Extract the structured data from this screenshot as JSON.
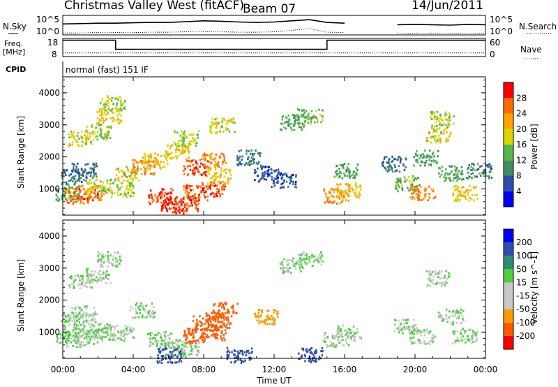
{
  "header": {
    "radar": "Christmas Valley West (fitACF)",
    "beam": "Beam 07",
    "date": "14/Jun/2011"
  },
  "panels": {
    "nsky": {
      "label": "N.Sky",
      "ticks": [
        "10^5",
        "10^0"
      ],
      "right_label": "N.Search",
      "right_ticks": [
        "10^5",
        "10^0"
      ]
    },
    "freq": {
      "label_line1": "Freq.",
      "label_line2": "[MHz]",
      "ticks": [
        "18",
        "8"
      ],
      "right_label": "Nave",
      "right_ticks": [
        "60",
        "0"
      ]
    },
    "cpid": {
      "label": "CPID",
      "value": "normal (fast) 151 IF"
    },
    "power": {
      "ylabel": "Slant Range [km]",
      "yticks": [
        "4000",
        "3000",
        "2000",
        "1000"
      ],
      "colorbar_label": "Power [dB]",
      "colorbar_ticks": [
        "28",
        "24",
        "20",
        "16",
        "12",
        "8",
        "4"
      ]
    },
    "velocity": {
      "ylabel": "Slant Range [km]",
      "yticks": [
        "4000",
        "3000",
        "2000",
        "1000"
      ],
      "colorbar_label": "Velocity [m s^-1]",
      "colorbar_ticks": [
        "200",
        "100",
        "50",
        "15",
        "-15",
        "-50",
        "-100",
        "-200"
      ]
    },
    "xaxis": {
      "label": "Time UT",
      "ticks": [
        "00:00",
        "04:00",
        "08:00",
        "12:00",
        "16:00",
        "20:00",
        "00:00"
      ]
    }
  },
  "chart_data": [
    {
      "type": "line",
      "title": "N.Sky / N.Search",
      "x": [
        0,
        1,
        2,
        3,
        4,
        5,
        6,
        7,
        8,
        9,
        10,
        11,
        12,
        13,
        14,
        15,
        16,
        17,
        18,
        19,
        20,
        21,
        22,
        23,
        24
      ],
      "series": [
        {
          "name": "N.Sky",
          "values": [
            2.8,
            2.9,
            3.0,
            3.0,
            3.1,
            3.2,
            3.2,
            3.4,
            3.6,
            3.5,
            3.3,
            3.2,
            3.3,
            3.6,
            3.9,
            3.2,
            3.0,
            null,
            null,
            2.6,
            2.7,
            2.6,
            2.5,
            2.7,
            2.6
          ]
        },
        {
          "name": "N.Search",
          "values": [
            0.5,
            0.5,
            0.6,
            0.6,
            0.6,
            0.7,
            0.7,
            0.8,
            0.9,
            0.8,
            0.7,
            0.7,
            0.8,
            1.2,
            1.6,
            0.7,
            0.6,
            null,
            null,
            0.4,
            0.4,
            0.4,
            0.4,
            0.4,
            0.4
          ]
        }
      ],
      "xlim": [
        0,
        24
      ],
      "ylim": [
        0,
        5
      ]
    },
    {
      "type": "line",
      "title": "Freq. / Nave",
      "x": [
        0,
        3,
        3,
        15,
        15,
        17,
        18.5,
        24
      ],
      "series": [
        {
          "name": "Freq.",
          "values": [
            17,
            17,
            12,
            12,
            17,
            17,
            17,
            17
          ]
        },
        {
          "name": "Nave",
          "values": [
            10,
            10,
            10,
            10,
            10,
            10,
            10,
            10
          ]
        }
      ],
      "ylim": [
        8,
        18
      ]
    },
    {
      "type": "heatmap",
      "title": "Power [dB]",
      "xlabel": "Time UT",
      "ylabel": "Slant Range [km]",
      "xlim": [
        0,
        24
      ],
      "ylim": [
        180,
        4500
      ],
      "zlim": [
        0,
        30
      ],
      "cells": [
        [
          0.3,
          900,
          12
        ],
        [
          0.8,
          800,
          24
        ],
        [
          1.5,
          900,
          26
        ],
        [
          2.0,
          1100,
          18
        ],
        [
          0.6,
          1400,
          8
        ],
        [
          1.2,
          1600,
          8
        ],
        [
          1.0,
          2600,
          18
        ],
        [
          2.0,
          2800,
          16
        ],
        [
          2.6,
          3300,
          20
        ],
        [
          2.8,
          3700,
          16
        ],
        [
          3.3,
          1000,
          16
        ],
        [
          3.6,
          1500,
          18
        ],
        [
          4.5,
          1700,
          24
        ],
        [
          5.2,
          1900,
          20
        ],
        [
          5.5,
          800,
          28
        ],
        [
          6.2,
          500,
          30
        ],
        [
          7.0,
          550,
          28
        ],
        [
          7.5,
          900,
          26
        ],
        [
          8.5,
          1000,
          28
        ],
        [
          8.8,
          1400,
          20
        ],
        [
          7.5,
          1700,
          28
        ],
        [
          8.5,
          1900,
          24
        ],
        [
          6.5,
          2200,
          20
        ],
        [
          7.0,
          2600,
          16
        ],
        [
          9.0,
          3000,
          18
        ],
        [
          10.5,
          2000,
          8
        ],
        [
          11.5,
          1500,
          6
        ],
        [
          12.5,
          1300,
          6
        ],
        [
          13.0,
          3100,
          12
        ],
        [
          14.0,
          3300,
          14
        ],
        [
          15.5,
          800,
          24
        ],
        [
          16.2,
          1000,
          20
        ],
        [
          16.0,
          1600,
          12
        ],
        [
          18.8,
          1800,
          8
        ],
        [
          19.5,
          1200,
          14
        ],
        [
          20.4,
          900,
          24
        ],
        [
          20.6,
          2000,
          12
        ],
        [
          21.3,
          2700,
          18
        ],
        [
          21.5,
          3200,
          16
        ],
        [
          22.0,
          1500,
          12
        ],
        [
          22.8,
          900,
          20
        ],
        [
          23.6,
          1600,
          10
        ]
      ]
    },
    {
      "type": "heatmap",
      "title": "Velocity [m s^-1]",
      "xlabel": "Time UT",
      "ylabel": "Slant Range [km]",
      "xlim": [
        0,
        24
      ],
      "ylim": [
        180,
        4500
      ],
      "zlim": [
        -200,
        200
      ],
      "cells": [
        [
          0.3,
          900,
          0
        ],
        [
          0.8,
          800,
          0
        ],
        [
          1.5,
          900,
          0
        ],
        [
          2.0,
          1100,
          0
        ],
        [
          0.6,
          1400,
          0
        ],
        [
          1.2,
          1600,
          0
        ],
        [
          1.0,
          2600,
          0
        ],
        [
          2.0,
          2800,
          0
        ],
        [
          2.6,
          3300,
          0
        ],
        [
          3.3,
          1000,
          0
        ],
        [
          4.5,
          1700,
          0
        ],
        [
          5.5,
          800,
          0
        ],
        [
          6.2,
          500,
          0
        ],
        [
          7.0,
          550,
          0
        ],
        [
          7.5,
          900,
          -150
        ],
        [
          8.5,
          1000,
          -180
        ],
        [
          8.8,
          1400,
          -170
        ],
        [
          8.0,
          1300,
          -160
        ],
        [
          9.2,
          1700,
          -190
        ],
        [
          11.5,
          1500,
          -60
        ],
        [
          13.0,
          3100,
          0
        ],
        [
          14.0,
          3300,
          0
        ],
        [
          15.5,
          800,
          0
        ],
        [
          16.2,
          1000,
          0
        ],
        [
          19.5,
          1200,
          0
        ],
        [
          20.4,
          900,
          0
        ],
        [
          21.3,
          2700,
          0
        ],
        [
          22.0,
          1500,
          0
        ],
        [
          22.8,
          900,
          0
        ],
        [
          6.0,
          300,
          60
        ],
        [
          10.0,
          300,
          70
        ],
        [
          14.0,
          300,
          60
        ]
      ]
    }
  ]
}
